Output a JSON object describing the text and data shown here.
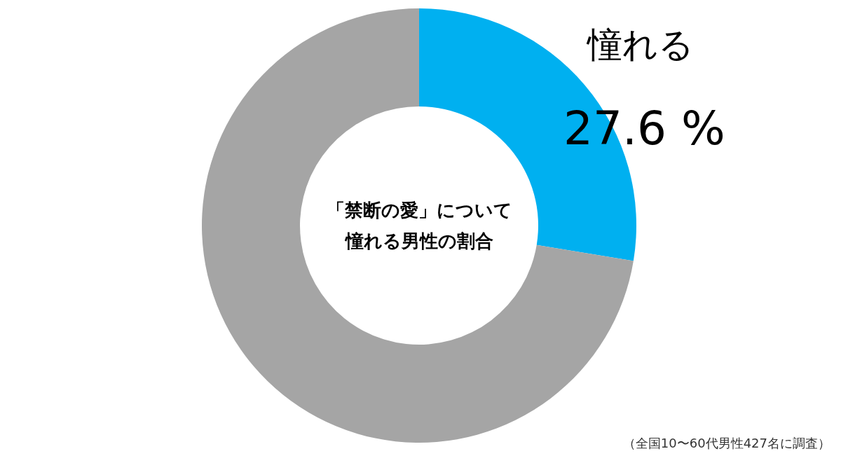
{
  "chart_data": {
    "type": "donut",
    "title": "「禁断の愛」について憧れる男性の割合",
    "categories": [
      "憧れる",
      null
    ],
    "values": [
      27.6,
      72.4
    ],
    "colors": [
      "#00b0f0",
      "#a5a5a5"
    ],
    "value_labels": [
      "27.6 %",
      null
    ],
    "annotations": [
      "（全国10〜60代男性427名に調査）"
    ]
  }
}
